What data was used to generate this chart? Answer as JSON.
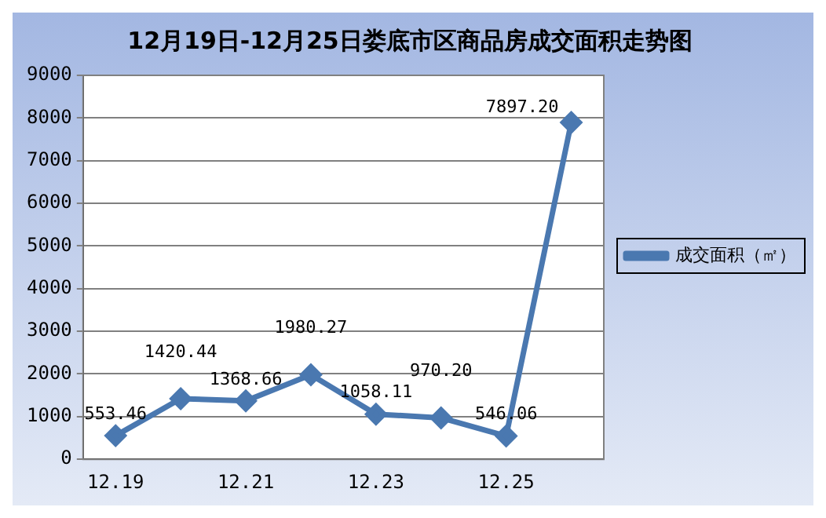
{
  "chart_data": {
    "type": "line",
    "title": "12月19日-12月25日娄底市区商品房成交面积走势图",
    "categories": [
      "12.19",
      null,
      "12.21",
      null,
      "12.23",
      null,
      "12.25",
      null
    ],
    "series": [
      {
        "name": "成交面积（㎡）",
        "color": "#4a78b0",
        "values": [
          553.46,
          1420.44,
          1368.66,
          1980.27,
          1058.11,
          970.2,
          546.06,
          7897.2
        ],
        "value_labels": [
          "553.46",
          "1420.44",
          "1368.66",
          "1980.27",
          "1058.11",
          "970.20",
          "546.06",
          "7897.20"
        ]
      }
    ],
    "ylim": [
      0,
      9000
    ],
    "yticks": [
      0,
      1000,
      2000,
      3000,
      4000,
      5000,
      6000,
      7000,
      8000,
      9000
    ],
    "grid": "y",
    "legend": "right",
    "marker": "diamond",
    "line_style": "solid"
  }
}
